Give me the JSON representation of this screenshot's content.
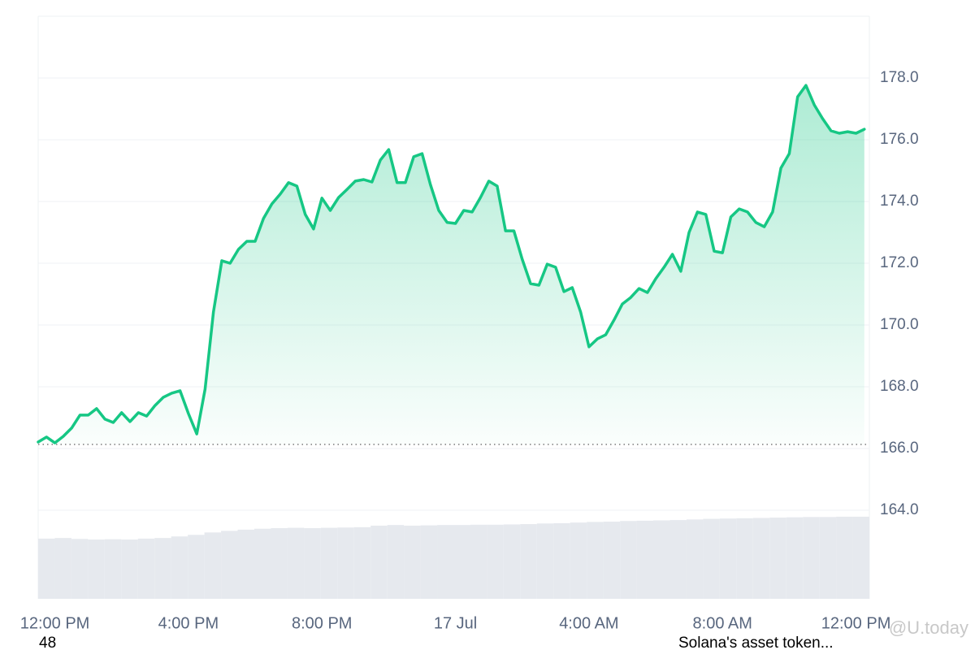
{
  "chart_data": {
    "type": "line",
    "x": [
      -0.5,
      -0.25,
      0,
      0.25,
      0.5,
      0.75,
      1,
      1.25,
      1.5,
      1.75,
      2,
      2.25,
      2.5,
      2.75,
      3,
      3.25,
      3.5,
      3.75,
      4,
      4.25,
      4.5,
      4.75,
      5,
      5.25,
      5.5,
      5.75,
      6,
      6.25,
      6.5,
      6.75,
      7,
      7.25,
      7.5,
      7.75,
      8,
      8.25,
      8.5,
      8.75,
      9,
      9.25,
      9.5,
      9.75,
      10,
      10.25,
      10.5,
      10.75,
      11,
      11.25,
      11.5,
      11.75,
      12,
      12.25,
      12.5,
      12.75,
      13,
      13.25,
      13.5,
      13.75,
      14,
      14.25,
      14.5,
      14.75,
      15,
      15.25,
      15.5,
      15.75,
      16,
      16.25,
      16.5,
      16.75,
      17,
      17.25,
      17.5,
      17.75,
      18,
      18.25,
      18.5,
      18.75,
      19,
      19.25,
      19.5,
      19.75,
      20,
      20.25,
      20.5,
      20.75,
      21,
      21.25,
      21.5,
      21.75,
      22,
      22.25,
      22.5,
      22.75,
      23,
      23.25,
      23.5,
      23.75,
      24,
      24.25
    ],
    "series": [
      {
        "color": "#16c784",
        "values": [
          166.21,
          166.37,
          166.18,
          166.39,
          166.66,
          167.08,
          167.08,
          167.29,
          166.95,
          166.84,
          167.16,
          166.87,
          167.16,
          167.05,
          167.39,
          167.66,
          167.79,
          167.87,
          167.13,
          166.47,
          167.92,
          170.42,
          172.08,
          172.0,
          172.45,
          172.71,
          172.71,
          173.45,
          173.92,
          174.24,
          174.61,
          174.5,
          173.58,
          173.11,
          174.11,
          173.71,
          174.13,
          174.39,
          174.66,
          174.71,
          174.63,
          175.34,
          175.68,
          174.61,
          174.61,
          175.45,
          175.55,
          174.55,
          173.71,
          173.32,
          173.29,
          173.71,
          173.66,
          174.13,
          174.66,
          174.5,
          173.05,
          173.05,
          172.13,
          171.34,
          171.29,
          171.97,
          171.87,
          171.08,
          171.21,
          170.42,
          169.29,
          169.55,
          169.68,
          170.16,
          170.68,
          170.89,
          171.18,
          171.05,
          171.5,
          171.87,
          172.29,
          171.74,
          173.0,
          173.66,
          173.58,
          172.39,
          172.34,
          173.5,
          173.76,
          173.66,
          173.32,
          173.18,
          173.66,
          175.08,
          175.55,
          177.39,
          177.76,
          177.13,
          176.68,
          176.29,
          176.21,
          176.26,
          176.21,
          176.34
        ]
      }
    ],
    "volume": {
      "color": "#e6e9ee",
      "values": [
        163.08,
        163.1,
        163.07,
        163.05,
        163.06,
        163.05,
        163.08,
        163.1,
        163.15,
        163.2,
        163.28,
        163.33,
        163.37,
        163.4,
        163.42,
        163.43,
        163.42,
        163.43,
        163.44,
        163.45,
        163.5,
        163.52,
        163.5,
        163.51,
        163.52,
        163.52,
        163.53,
        163.53,
        163.54,
        163.55,
        163.57,
        163.58,
        163.6,
        163.62,
        163.63,
        163.65,
        163.66,
        163.67,
        163.68,
        163.7,
        163.72,
        163.73,
        163.74,
        163.75,
        163.76,
        163.77,
        163.78,
        163.78,
        163.79,
        163.79
      ]
    },
    "baseline": 166.13,
    "xlim": [
      -0.5,
      24.4
    ],
    "xticks": [
      {
        "value": 0,
        "label": "12:00 PM"
      },
      {
        "value": 4,
        "label": "4:00 PM"
      },
      {
        "value": 8,
        "label": "8:00 PM"
      },
      {
        "value": 12,
        "label": "17 Jul"
      },
      {
        "value": 16,
        "label": "4:00 AM"
      },
      {
        "value": 20,
        "label": "8:00 AM"
      },
      {
        "value": 24,
        "label": "12:00 PM"
      }
    ],
    "ylim": [
      161.13,
      180.0
    ],
    "yticks": [
      {
        "value": 164,
        "label": "164.0"
      },
      {
        "value": 166,
        "label": "166.0"
      },
      {
        "value": 168,
        "label": "168.0"
      },
      {
        "value": 170,
        "label": "170.0"
      },
      {
        "value": 172,
        "label": "172.0"
      },
      {
        "value": 174,
        "label": "174.0"
      },
      {
        "value": 176,
        "label": "176.0"
      },
      {
        "value": 178,
        "label": "178.0"
      }
    ],
    "grid": true,
    "footer_left": "48",
    "footer_right": "Solana's asset token...",
    "watermark": "@U.today"
  }
}
